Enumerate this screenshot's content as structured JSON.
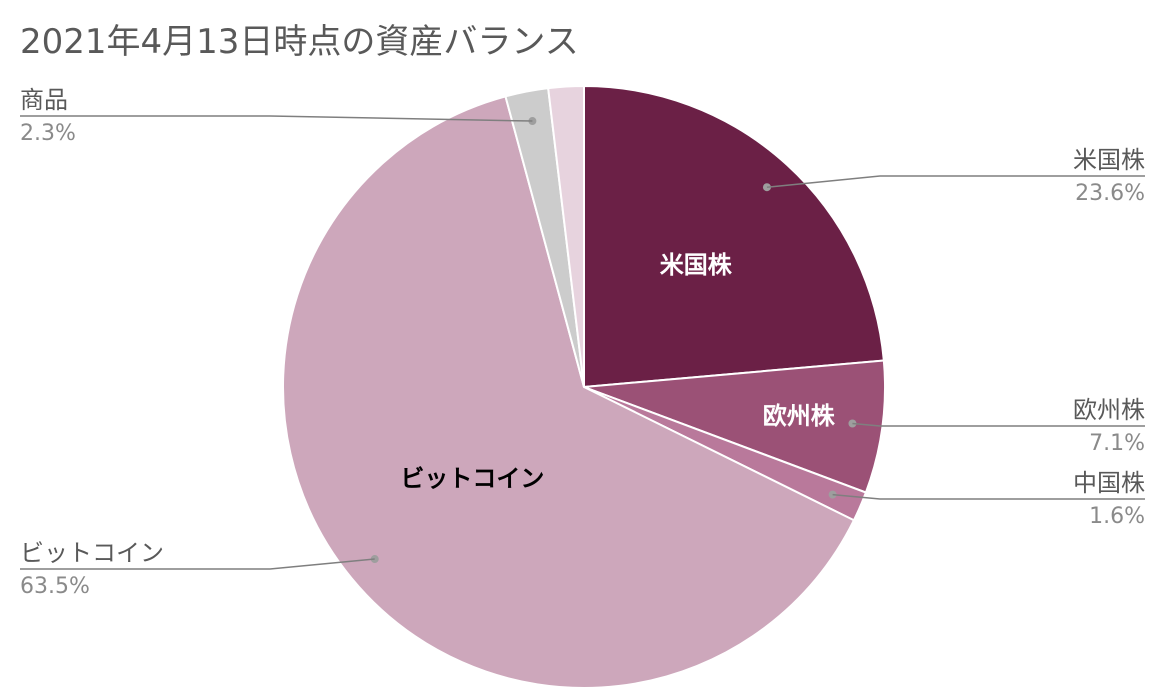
{
  "chart_data": {
    "type": "pie",
    "title": "2021年4月13日時点の資産バランス",
    "categories": [
      "米国株",
      "欧州株",
      "中国株",
      "ビットコイン",
      "商品",
      ""
    ],
    "values": [
      23.6,
      7.1,
      1.6,
      63.5,
      2.3,
      1.9
    ],
    "value_labels": [
      "23.6%",
      "7.1%",
      "1.6%",
      "63.5%",
      "2.3%",
      ""
    ],
    "inner_labels": [
      "米国株",
      "欧州株",
      "",
      "ビットコイン",
      "",
      ""
    ],
    "colors": [
      "#6b2046",
      "#9b5176",
      "#b9799b",
      "#cda7bb",
      "#cccccc",
      "#e7d3de"
    ],
    "inner_label_colors": [
      "#ffffff",
      "#ffffff",
      "",
      "#000000",
      "",
      ""
    ],
    "start_angle": "12 o'clock",
    "direction": "clockwise",
    "legend": "none (callout labels)"
  }
}
